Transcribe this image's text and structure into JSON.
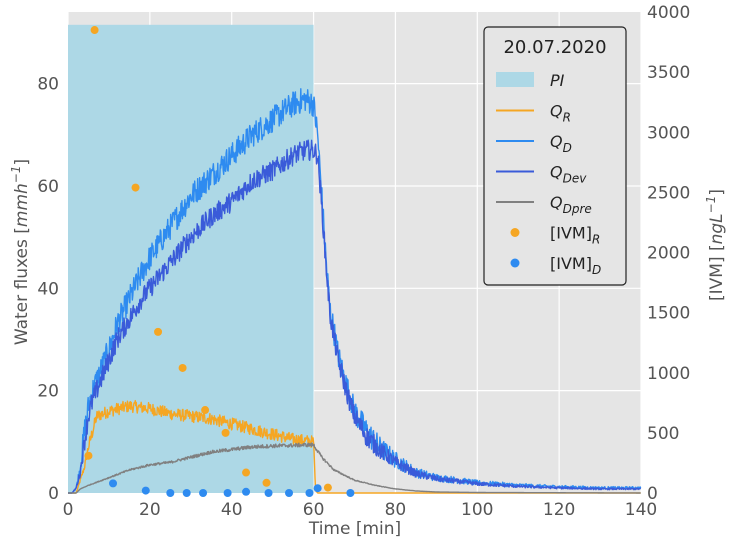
{
  "chart_data": {
    "type": "line",
    "x": {
      "label": "Time [min]",
      "range": [
        0,
        140
      ],
      "ticks": [
        0,
        20,
        40,
        60,
        80,
        100,
        120,
        140
      ]
    },
    "y_left": {
      "label": "Water fluxes [mmh⁻¹]",
      "label_parts": [
        "Water fluxes [",
        "mmh",
        "−1",
        "]"
      ],
      "range": [
        0,
        94
      ],
      "ticks": [
        0,
        20,
        40,
        60,
        80
      ]
    },
    "y_right": {
      "label": "[IVM] [ngL⁻¹]",
      "label_parts": [
        "[IVM] [",
        "ngL",
        "−1",
        "]"
      ],
      "range": [
        0,
        4000
      ],
      "ticks": [
        0,
        500,
        1000,
        1500,
        2000,
        2500,
        3000,
        3500,
        4000
      ]
    },
    "grid": true,
    "legend": {
      "title": "20.07.2020",
      "placement": "top-right",
      "entries": [
        {
          "label": "PI",
          "sub": "",
          "kind": "patch",
          "color": "#add8e6",
          "italic": true
        },
        {
          "label": "Q",
          "sub": "R",
          "kind": "line",
          "color": "#f5a623",
          "italic": true
        },
        {
          "label": "Q",
          "sub": "D",
          "kind": "line",
          "color": "#2e8bf0",
          "italic": true
        },
        {
          "label": "Q",
          "sub": "Dev",
          "kind": "line",
          "color": "#3a5bd9",
          "italic": true
        },
        {
          "label": "Q",
          "sub": "Dpre",
          "kind": "line",
          "color": "#808080",
          "italic": true
        },
        {
          "label": "[IVM]",
          "sub": "R",
          "kind": "point",
          "color": "#f5a623",
          "italic": false
        },
        {
          "label": "[IVM]",
          "sub": "D",
          "kind": "point",
          "color": "#2e8bf0",
          "italic": false
        }
      ]
    },
    "series": [
      {
        "name": "PI",
        "kind": "area",
        "color": "#add8e6",
        "axis": "left",
        "x": [
          0,
          60
        ],
        "y": [
          91.5,
          91.5
        ]
      },
      {
        "name": "Q_R",
        "kind": "line",
        "color": "#f5a623",
        "axis": "left",
        "noise": 1.2,
        "x": [
          0,
          2,
          4,
          5,
          7,
          10,
          15,
          20,
          25,
          30,
          35,
          40,
          45,
          50,
          55,
          60,
          60.5,
          61,
          140
        ],
        "y": [
          0,
          0,
          5,
          9,
          15,
          16,
          17,
          16.5,
          15.5,
          15,
          14.5,
          13.5,
          12.5,
          11.5,
          10.5,
          10,
          0.5,
          0,
          0
        ]
      },
      {
        "name": "Q_D",
        "kind": "line",
        "color": "#2e8bf0",
        "axis": "left",
        "noise": 2.5,
        "x": [
          0,
          1,
          2,
          3,
          4,
          5,
          6,
          8,
          10,
          12,
          15,
          18,
          20,
          25,
          30,
          35,
          40,
          45,
          50,
          55,
          58,
          60,
          61,
          62,
          63,
          64,
          66,
          68,
          70,
          73,
          76,
          80,
          85,
          90,
          100,
          110,
          120,
          130,
          140
        ],
        "y": [
          0,
          0,
          1,
          5,
          12,
          17,
          20,
          24,
          28,
          33,
          38,
          43,
          46,
          52,
          58,
          62,
          66,
          70,
          73,
          76,
          77,
          76,
          70,
          58,
          46,
          36,
          27,
          21,
          16,
          12,
          9,
          6.5,
          4,
          3,
          2,
          1.5,
          1.2,
          1,
          1
        ]
      },
      {
        "name": "Q_Dev",
        "kind": "line",
        "color": "#3a5bd9",
        "axis": "left",
        "noise": 2.0,
        "x": [
          0,
          1,
          2,
          3,
          4,
          5,
          6,
          8,
          10,
          12,
          15,
          18,
          20,
          25,
          30,
          35,
          40,
          45,
          50,
          55,
          58,
          60,
          61,
          62,
          63,
          64,
          66,
          68,
          70,
          73,
          76,
          80,
          85,
          90,
          100,
          110,
          120,
          130,
          140
        ],
        "y": [
          0,
          0,
          1,
          4,
          10,
          15,
          18,
          22,
          26,
          30,
          34,
          38,
          40,
          45,
          50,
          54,
          57,
          61,
          63,
          66,
          67,
          67,
          66,
          56,
          45,
          35,
          26,
          20,
          15,
          11,
          8.5,
          6,
          3.8,
          2.8,
          1.8,
          1.3,
          1,
          0.8,
          0.8
        ]
      },
      {
        "name": "Q_Dpre",
        "kind": "line",
        "color": "#808080",
        "axis": "left",
        "noise": 0.4,
        "x": [
          0,
          2,
          3,
          5,
          10,
          15,
          20,
          25,
          30,
          35,
          40,
          45,
          50,
          55,
          58,
          60,
          62,
          65,
          70,
          75,
          80,
          85,
          90,
          100,
          140
        ],
        "y": [
          0,
          0,
          0.8,
          1.5,
          3,
          4.5,
          5.5,
          6,
          7,
          8,
          8.5,
          9,
          9.2,
          9.3,
          9.4,
          9.4,
          7,
          4.5,
          2.5,
          1.5,
          0.8,
          0.4,
          0.2,
          0.1,
          0
        ]
      },
      {
        "name": "[IVM]_R",
        "kind": "scatter",
        "color": "#f5a623",
        "axis": "right",
        "x": [
          5,
          6.5,
          16.5,
          22,
          28,
          33.5,
          38.5,
          43.5,
          48.5,
          63.5
        ],
        "y": [
          310,
          3850,
          2540,
          1340,
          1040,
          690,
          500,
          170,
          85,
          45
        ]
      },
      {
        "name": "[IVM]_D",
        "kind": "scatter",
        "color": "#2e8bf0",
        "axis": "right",
        "x": [
          11,
          19,
          25,
          29,
          33,
          39,
          43.5,
          49,
          54,
          59,
          61,
          69
        ],
        "y": [
          80,
          20,
          0,
          0,
          0,
          0,
          10,
          0,
          0,
          0,
          40,
          0
        ]
      }
    ]
  }
}
